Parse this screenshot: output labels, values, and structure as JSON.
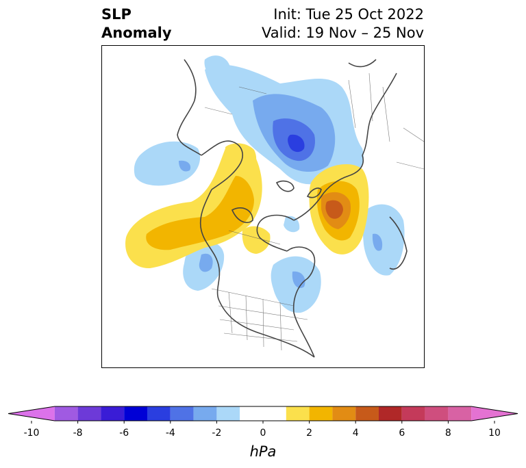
{
  "title": {
    "variable_line1": "SLP",
    "variable_line2": "Anomaly",
    "init": "Init: Tue 25 Oct 2022",
    "valid": "Valid: 19 Nov – 25 Nov"
  },
  "map": {
    "projection": "north-polar-stereographic",
    "region": "North America / Arctic",
    "features": [
      {
        "type": "negative",
        "region": "northern Eurasia / Siberia",
        "peak_hpa": -7
      },
      {
        "type": "positive",
        "region": "Alaska / Yukon",
        "peak_hpa": 3
      },
      {
        "type": "positive",
        "region": "North Pacific Gulf of Alaska",
        "peak_hpa": 3
      },
      {
        "type": "positive",
        "region": "Arctic Ocean near Scandinavia / Barents",
        "peak_hpa": 5
      },
      {
        "type": "negative",
        "region": "Pacific NW coast",
        "peak_hpa": -3
      },
      {
        "type": "negative",
        "region": "Northeast Canada / Labrador",
        "peak_hpa": -2
      },
      {
        "type": "negative",
        "region": "North Atlantic east of Scandinavia",
        "peak_hpa": -3
      },
      {
        "type": "negative",
        "region": "Bering Sea",
        "peak_hpa": -2
      }
    ]
  },
  "colorbar": {
    "units": "hPa",
    "min": -10,
    "max": 10,
    "step": 1,
    "tick_labels": [
      "-10",
      "-8",
      "-6",
      "-4",
      "-2",
      "0",
      "2",
      "4",
      "6",
      "8",
      "10"
    ],
    "colors": [
      "#dc72ea",
      "#a05ae2",
      "#6d3ad8",
      "#3a1cd6",
      "#0000d6",
      "#2a3ee0",
      "#4f72e6",
      "#77aaee",
      "#abd8f8",
      "#ffffff",
      "#ffffff",
      "#fbe04c",
      "#f2b500",
      "#e28c14",
      "#c75a1a",
      "#b02828",
      "#c43a5a",
      "#cf4e7e",
      "#d862a4",
      "#e472d2"
    ]
  }
}
